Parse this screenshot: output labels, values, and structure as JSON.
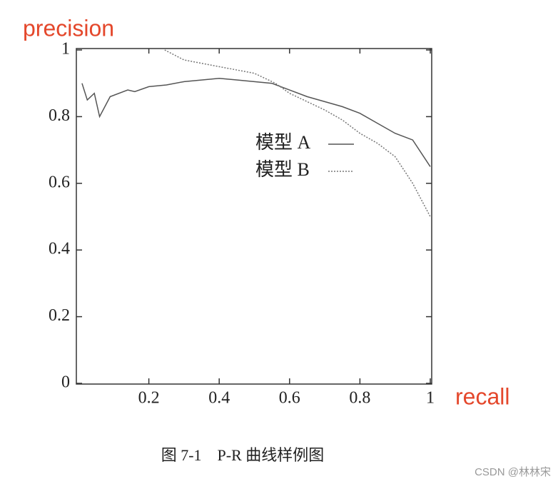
{
  "chart_data": {
    "type": "line",
    "xlabel": "recall",
    "ylabel": "precision",
    "caption": "图 7-1    P-R 曲线样例图",
    "watermark": "CSDN @林林宋",
    "xlim": [
      0,
      1
    ],
    "ylim": [
      0,
      1
    ],
    "xticks": [
      0.2,
      0.4,
      0.6,
      0.8,
      1
    ],
    "yticks": [
      0,
      0.2,
      0.4,
      0.6,
      0.8,
      1
    ],
    "grid": false,
    "series": [
      {
        "name": "模型 A",
        "color": "#555555",
        "style": "solid",
        "x": [
          0.01,
          0.025,
          0.045,
          0.06,
          0.09,
          0.14,
          0.16,
          0.2,
          0.25,
          0.3,
          0.4,
          0.45,
          0.5,
          0.55,
          0.6,
          0.65,
          0.7,
          0.75,
          0.8,
          0.85,
          0.9,
          0.95,
          1.0
        ],
        "values": [
          0.9,
          0.85,
          0.87,
          0.8,
          0.86,
          0.88,
          0.875,
          0.89,
          0.895,
          0.905,
          0.915,
          0.91,
          0.905,
          0.9,
          0.88,
          0.86,
          0.845,
          0.83,
          0.81,
          0.78,
          0.75,
          0.73,
          0.65
        ]
      },
      {
        "name": "模型 B",
        "color": "#777777",
        "style": "dotted",
        "x": [
          0.245,
          0.3,
          0.4,
          0.5,
          0.56,
          0.6,
          0.7,
          0.75,
          0.8,
          0.85,
          0.9,
          0.95,
          1.0
        ],
        "values": [
          1.0,
          0.97,
          0.95,
          0.93,
          0.9,
          0.87,
          0.82,
          0.79,
          0.75,
          0.72,
          0.68,
          0.6,
          0.5
        ]
      }
    ]
  }
}
